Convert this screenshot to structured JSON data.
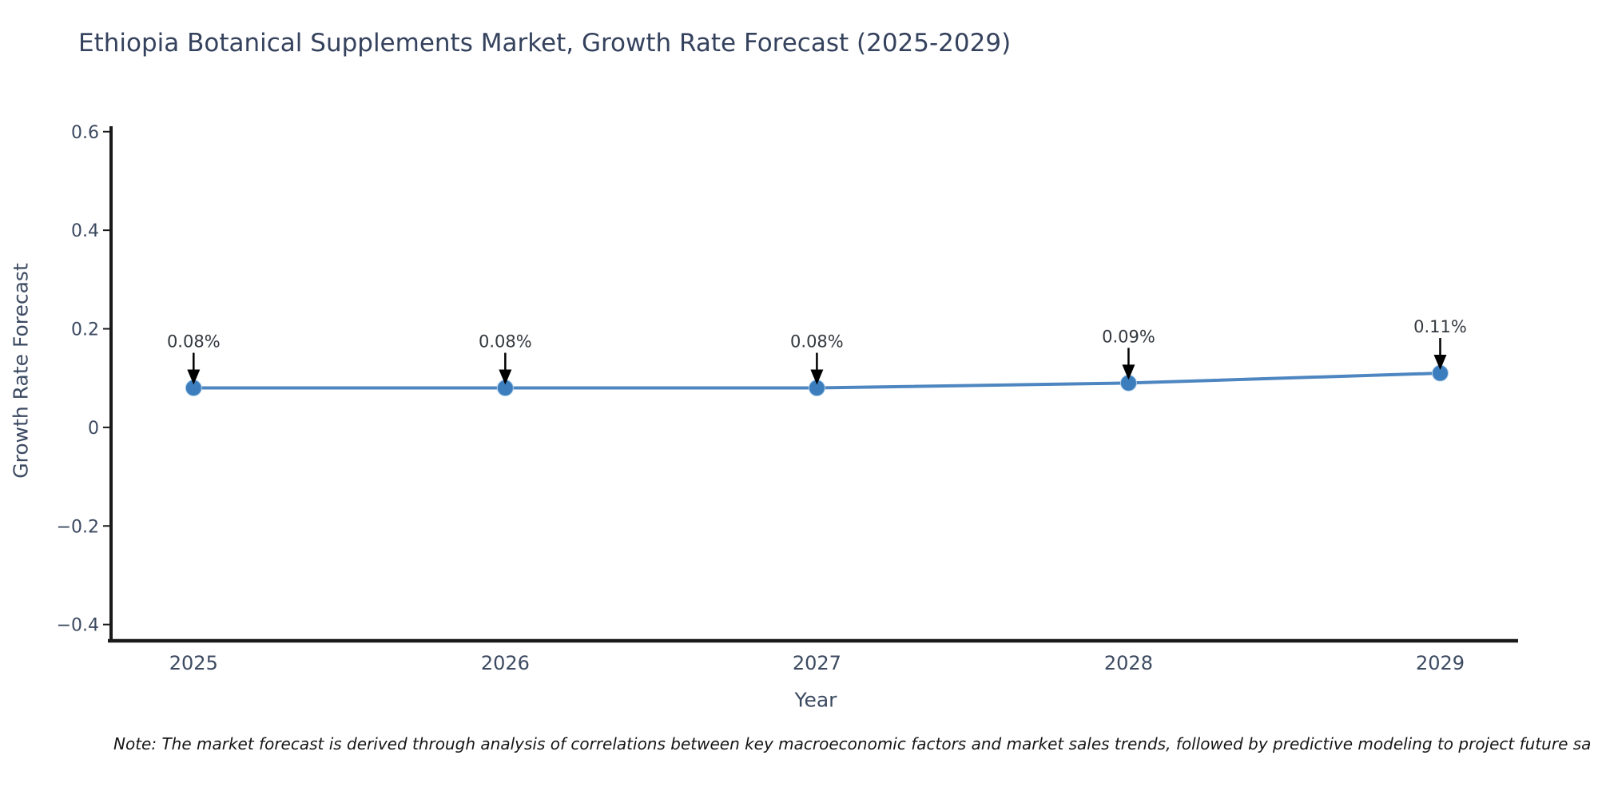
{
  "page": {
    "note": "Note: The market forecast is derived through analysis of correlations between key macroeconomic factors and market sales trends, followed by predictive modeling to project future sa"
  },
  "chart_data": {
    "type": "line",
    "title": "Ethiopia Botanical Supplements Market, Growth Rate Forecast (2025-2029)",
    "xlabel": "Year",
    "ylabel": "Growth Rate Forecast",
    "categories": [
      "2025",
      "2026",
      "2027",
      "2028",
      "2029"
    ],
    "x": [
      2025,
      2026,
      2027,
      2028,
      2029
    ],
    "series": [
      {
        "name": "Growth Rate Forecast",
        "values": [
          0.08,
          0.08,
          0.08,
          0.09,
          0.11
        ]
      }
    ],
    "point_labels": [
      "0.08%",
      "0.08%",
      "0.08%",
      "0.09%",
      "0.11%"
    ],
    "yticks": [
      0.6,
      0.4,
      0.2,
      0,
      -0.2,
      -0.4
    ],
    "ylim": [
      -0.433,
      0.611
    ],
    "xlim": [
      2024.73,
      2029.25
    ],
    "grid": false,
    "legend": false,
    "colors": {
      "line": "#4d86c0",
      "marker": "#3c7ebd",
      "axis": "#1a1a1a",
      "tick_label": "#3c4a61",
      "annotation_text": "#33393f",
      "annotation_arrow": "#000000"
    }
  }
}
